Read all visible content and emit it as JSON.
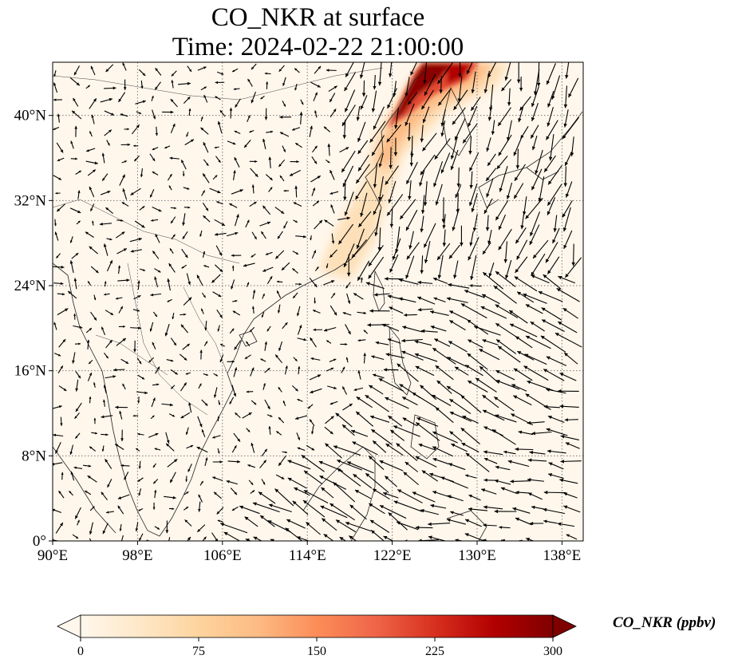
{
  "title": {
    "line1": "CO_NKR at surface",
    "line2": "Time: 2024-02-22 21:00:00"
  },
  "map": {
    "variable": "CO_NKR",
    "level": "surface",
    "lon_range": [
      90,
      140
    ],
    "lat_range": [
      0,
      45
    ],
    "gridlines": "dotted",
    "coastlines": true,
    "wind_vectors": true,
    "lon_ticks": [
      {
        "value": 90,
        "label": "90°E"
      },
      {
        "value": 98,
        "label": "98°E"
      },
      {
        "value": 106,
        "label": "106°E"
      },
      {
        "value": 114,
        "label": "114°E"
      },
      {
        "value": 122,
        "label": "122°E"
      },
      {
        "value": 130,
        "label": "130°E"
      },
      {
        "value": 138,
        "label": "138°E"
      }
    ],
    "lat_ticks": [
      {
        "value": 0,
        "label": "0°"
      },
      {
        "value": 8,
        "label": "8°N"
      },
      {
        "value": 16,
        "label": "16°N"
      },
      {
        "value": 24,
        "label": "24°N"
      },
      {
        "value": 32,
        "label": "32°N"
      },
      {
        "value": 40,
        "label": "40°N"
      }
    ]
  },
  "colorbar": {
    "label": "CO_NKR (ppbv)",
    "colormap": "OrRd",
    "min": 0,
    "max": 300,
    "extend": "both",
    "ticks": [
      {
        "value": 0,
        "label": "0"
      },
      {
        "value": 75,
        "label": "75"
      },
      {
        "value": 150,
        "label": "150"
      },
      {
        "value": 225,
        "label": "225"
      },
      {
        "value": 300,
        "label": "300"
      }
    ],
    "colors": [
      "#fff7ec",
      "#fee8c8",
      "#fdd49e",
      "#fdbb84",
      "#fc8d59",
      "#ef6548",
      "#d7301f",
      "#b30000",
      "#7f0000"
    ]
  }
}
